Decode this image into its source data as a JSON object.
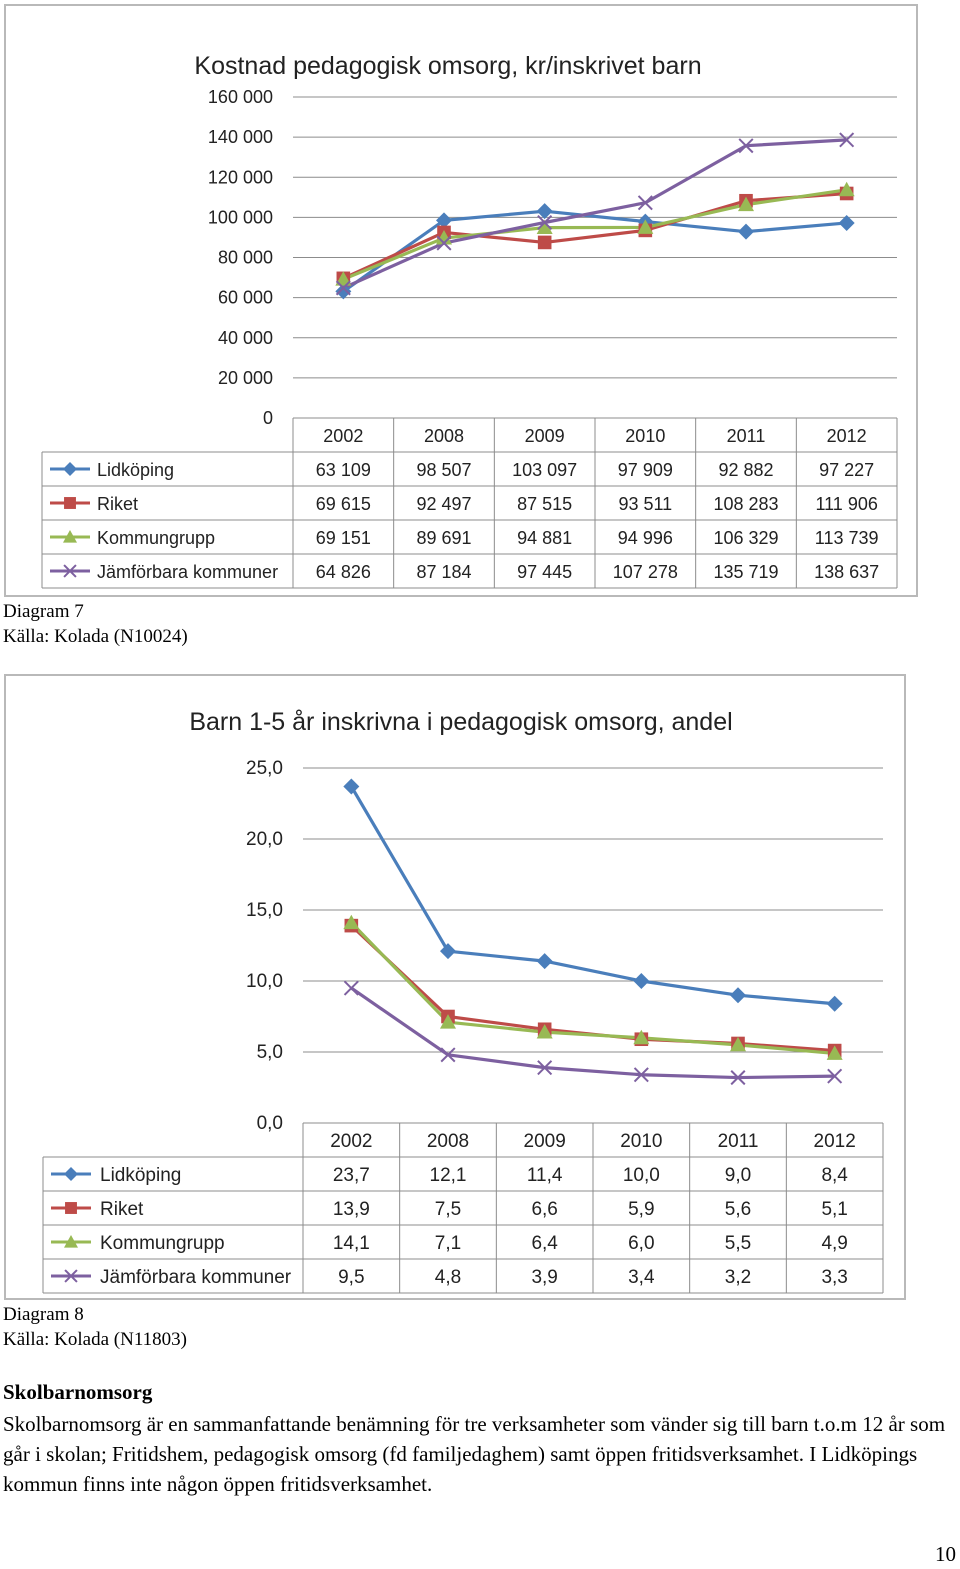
{
  "chart_data": [
    {
      "type": "line",
      "title": "Kostnad pedagogisk omsorg, kr/inskrivet barn",
      "categories": [
        "2002",
        "2008",
        "2009",
        "2010",
        "2011",
        "2012"
      ],
      "ylim": [
        0,
        160000
      ],
      "ytick_labels": [
        "0",
        "20 000",
        "40 000",
        "60 000",
        "80 000",
        "100 000",
        "120 000",
        "140 000",
        "160 000"
      ],
      "grid": true,
      "legend": "data table",
      "series": [
        {
          "name": "Lidköping",
          "color": "#4a7ebb",
          "marker": "diamond",
          "values": [
            63109,
            98507,
            103097,
            97909,
            92882,
            97227
          ],
          "labels": [
            "63 109",
            "98 507",
            "103 097",
            "97 909",
            "92 882",
            "97 227"
          ]
        },
        {
          "name": "Riket",
          "color": "#be4b48",
          "marker": "square",
          "values": [
            69615,
            92497,
            87515,
            93511,
            108283,
            111906
          ],
          "labels": [
            "69 615",
            "92 497",
            "87 515",
            "93 511",
            "108 283",
            "111 906"
          ]
        },
        {
          "name": "Kommungrupp",
          "color": "#98b954",
          "marker": "triangle",
          "values": [
            69151,
            89691,
            94881,
            94996,
            106329,
            113739
          ],
          "labels": [
            "69 151",
            "89 691",
            "94 881",
            "94 996",
            "106 329",
            "113 739"
          ]
        },
        {
          "name": "Jämförbara kommuner",
          "color": "#7d60a0",
          "marker": "x",
          "values": [
            64826,
            87184,
            97445,
            107278,
            135719,
            138637
          ],
          "labels": [
            "64 826",
            "87 184",
            "97 445",
            "107 278",
            "135 719",
            "138 637"
          ]
        }
      ]
    },
    {
      "type": "line",
      "title": "Barn 1-5 år inskrivna i pedagogisk omsorg, andel",
      "categories": [
        "2002",
        "2008",
        "2009",
        "2010",
        "2011",
        "2012"
      ],
      "ylim": [
        0,
        25
      ],
      "ytick_labels": [
        "0,0",
        "5,0",
        "10,0",
        "15,0",
        "20,0",
        "25,0"
      ],
      "grid": true,
      "legend": "data table",
      "series": [
        {
          "name": "Lidköping",
          "color": "#4a7ebb",
          "marker": "diamond",
          "values": [
            23.7,
            12.1,
            11.4,
            10.0,
            9.0,
            8.4
          ],
          "labels": [
            "23,7",
            "12,1",
            "11,4",
            "10,0",
            "9,0",
            "8,4"
          ]
        },
        {
          "name": "Riket",
          "color": "#be4b48",
          "marker": "square",
          "values": [
            13.9,
            7.5,
            6.6,
            5.9,
            5.6,
            5.1
          ],
          "labels": [
            "13,9",
            "7,5",
            "6,6",
            "5,9",
            "5,6",
            "5,1"
          ]
        },
        {
          "name": "Kommungrupp",
          "color": "#98b954",
          "marker": "triangle",
          "values": [
            14.1,
            7.1,
            6.4,
            6.0,
            5.5,
            4.9
          ],
          "labels": [
            "14,1",
            "7,1",
            "6,4",
            "6,0",
            "5,5",
            "4,9"
          ]
        },
        {
          "name": "Jämförbara kommuner",
          "color": "#7d60a0",
          "marker": "x",
          "values": [
            9.5,
            4.8,
            3.9,
            3.4,
            3.2,
            3.3
          ],
          "labels": [
            "9,5",
            "4,8",
            "3,9",
            "3,4",
            "3,2",
            "3,3"
          ]
        }
      ]
    }
  ],
  "captions": [
    {
      "diagram": "Diagram 7",
      "source": "Källa: Kolada (N10024)"
    },
    {
      "diagram": "Diagram 8",
      "source": "Källa: Kolada (N11803)"
    }
  ],
  "section": {
    "title": "Skolbarnomsorg",
    "body": "Skolbarnomsorg är en sammanfattande benämning för tre verksamheter som vänder sig till barn t.o.m 12 år som går i skolan; Fritidshem, pedagogisk omsorg (fd familjedaghem) samt öppen fritidsverksamhet. I Lidköpings kommun finns inte någon öppen fritidsverksamhet."
  },
  "page_number": "10"
}
